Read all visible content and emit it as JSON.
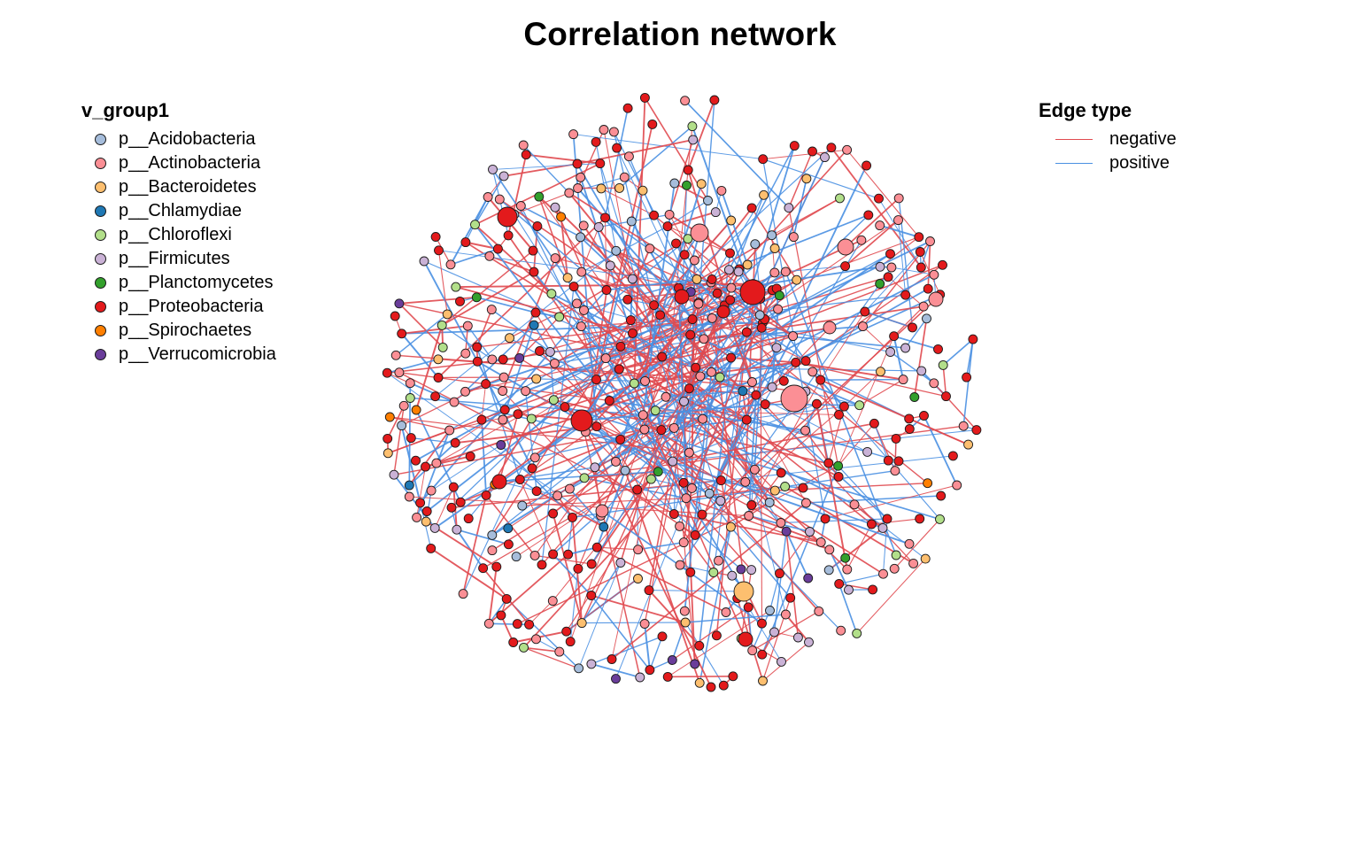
{
  "title": "Correlation network",
  "node_legend": {
    "title": "v_group1",
    "items": [
      {
        "label": "p__Acidobacteria",
        "color": "#a6bddb"
      },
      {
        "label": "p__Actinobacteria",
        "color": "#fb8f95"
      },
      {
        "label": "p__Bacteroidetes",
        "color": "#fdbf6f"
      },
      {
        "label": "p__Chlamydiae",
        "color": "#1f78b4"
      },
      {
        "label": "p__Chloroflexi",
        "color": "#b2df8a"
      },
      {
        "label": "p__Firmicutes",
        "color": "#cab2d6"
      },
      {
        "label": "p__Planctomycetes",
        "color": "#33a02c"
      },
      {
        "label": "p__Proteobacteria",
        "color": "#e31a1c"
      },
      {
        "label": "p__Spirochaetes",
        "color": "#ff7f00"
      },
      {
        "label": "p__Verrucomicrobia",
        "color": "#6a3d9a"
      }
    ]
  },
  "edge_legend": {
    "title": "Edge type",
    "items": [
      {
        "label": "negative",
        "color": "#e0494f"
      },
      {
        "label": "positive",
        "color": "#4a90e2"
      }
    ]
  }
}
